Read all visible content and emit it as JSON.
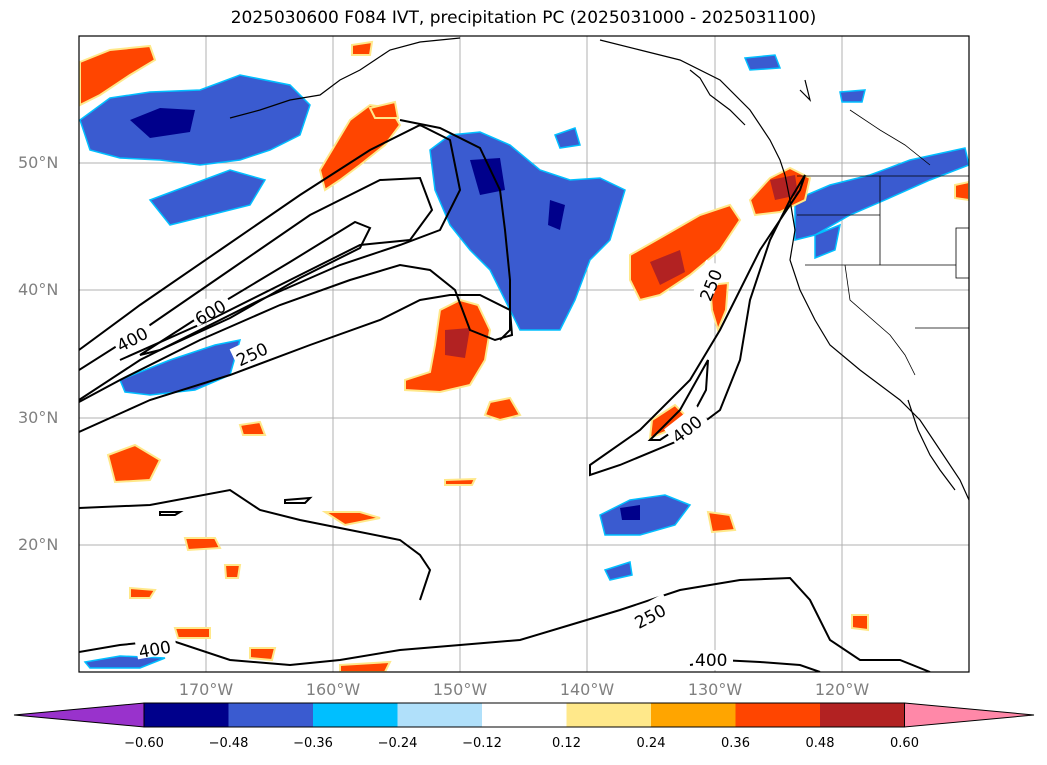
{
  "title": "2025030600 F084 IVT, precipitation PC (2025031000 - 2025031100)",
  "map": {
    "lat_labels": [
      "50°N",
      "40°N",
      "30°N",
      "20°N"
    ],
    "lon_labels": [
      "170°W",
      "160°W",
      "150°W",
      "140°W",
      "130°W",
      "120°W"
    ],
    "contour_labels": [
      "400",
      "600",
      "250",
      "250",
      "400",
      "250",
      "400",
      "400"
    ],
    "extent": {
      "lon_min": -180,
      "lon_max": -110,
      "lat_min": 10,
      "lat_max": 60
    }
  },
  "colorbar": {
    "ticks": [
      "−0.60",
      "−0.48",
      "−0.36",
      "−0.24",
      "−0.12",
      "0.12",
      "0.24",
      "0.36",
      "0.48",
      "0.60"
    ],
    "colors": [
      "#9932cc",
      "#00008b",
      "#3a5bd0",
      "#00bfff",
      "#b0e0fa",
      "#ffffff",
      "#ffe88a",
      "#ffa500",
      "#ff4500",
      "#b22222",
      "#ff88a8"
    ]
  }
}
